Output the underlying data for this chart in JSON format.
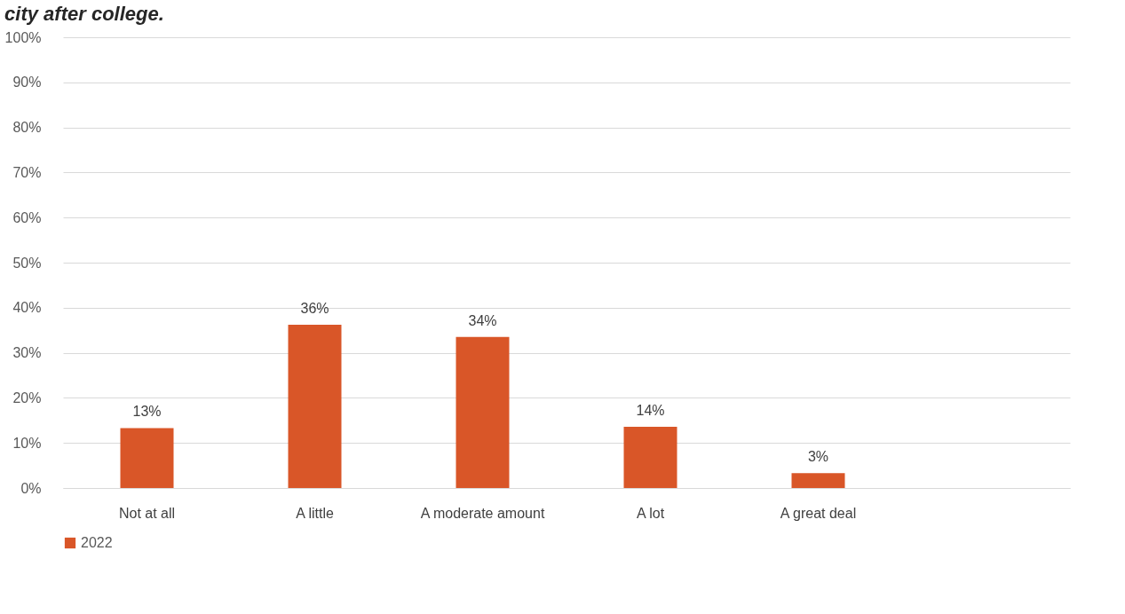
{
  "chart_data": {
    "type": "bar",
    "title": "city after college.",
    "categories": [
      "Not at all",
      "A little",
      "A moderate amount",
      "A lot",
      "A great deal",
      null
    ],
    "series": [
      {
        "name": "2022",
        "color": "#d95628",
        "values": [
          13.3,
          36.2,
          33.5,
          13.6,
          3.3,
          null
        ],
        "value_labels": [
          "13%",
          "36%",
          "34%",
          "14%",
          "3%",
          null
        ]
      }
    ],
    "ylim": [
      0,
      100
    ],
    "yticks": [
      {
        "value": 0,
        "label": "0%"
      },
      {
        "value": 10,
        "label": "10%"
      },
      {
        "value": 20,
        "label": "20%"
      },
      {
        "value": 30,
        "label": "30%"
      },
      {
        "value": 40,
        "label": "40%"
      },
      {
        "value": 50,
        "label": "50%"
      },
      {
        "value": 60,
        "label": "60%"
      },
      {
        "value": 70,
        "label": "70%"
      },
      {
        "value": 80,
        "label": "80%"
      },
      {
        "value": 90,
        "label": "90%"
      },
      {
        "value": 100,
        "label": "100%"
      }
    ],
    "grid": "y",
    "legend": "bottom"
  }
}
